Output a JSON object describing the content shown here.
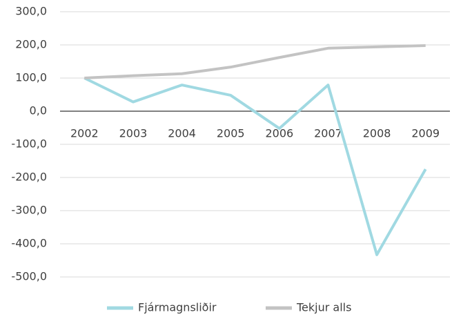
{
  "chart_data": {
    "type": "line",
    "categories": [
      "2002",
      "2003",
      "2004",
      "2005",
      "2006",
      "2007",
      "2008",
      "2009"
    ],
    "series": [
      {
        "name": "Fjármagnsliðir",
        "color": "#a0d9e2",
        "values": [
          100,
          28,
          79,
          48,
          -52,
          79,
          -433,
          -175
        ]
      },
      {
        "name": "Tekjur alls",
        "color": "#c3c3c3",
        "values": [
          100,
          107,
          113,
          133,
          162,
          190,
          194,
          198
        ]
      }
    ],
    "ylim": [
      -500,
      300
    ],
    "yticks": [
      {
        "value": -500,
        "label": "-500,0"
      },
      {
        "value": -400,
        "label": "-400,0"
      },
      {
        "value": -300,
        "label": "-300,0"
      },
      {
        "value": -200,
        "label": "-200,0"
      },
      {
        "value": -100,
        "label": "-100,0"
      },
      {
        "value": 0,
        "label": "0,0"
      },
      {
        "value": 100,
        "label": "100,0"
      },
      {
        "value": 200,
        "label": "200,0"
      },
      {
        "value": 300,
        "label": "300,0"
      }
    ],
    "grid": true,
    "legend": "bottom"
  }
}
